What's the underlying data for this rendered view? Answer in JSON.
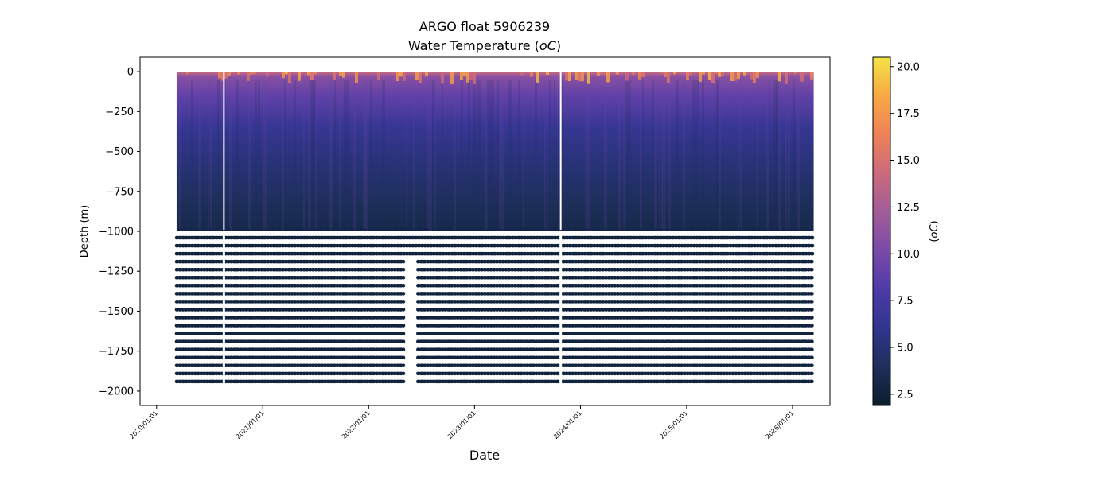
{
  "chart_data": {
    "type": "heatmap",
    "title": "ARGO float 5906239",
    "subtitle_main": "Water Temperature (",
    "subtitle_unit": "oC",
    "subtitle_close": ")",
    "xlabel": "Date",
    "ylabel": "Depth (m)",
    "colorbar_label_open": "(",
    "colorbar_label_unit": "oC",
    "colorbar_label_close": ")",
    "x_range": [
      "2019-11-05",
      "2026-05-10"
    ],
    "ylim": [
      -2090,
      90
    ],
    "x_ticks": [
      "2020/01/01",
      "2021/01/01",
      "2022/01/01",
      "2023/01/01",
      "2024/01/01",
      "2025/01/01",
      "2026/01/01"
    ],
    "y_ticks": [
      0,
      -250,
      -500,
      -750,
      -1000,
      -1250,
      -1500,
      -1750,
      -2000
    ],
    "y_tick_labels": [
      "0",
      "−250",
      "−500",
      "−750",
      "−1000",
      "−1250",
      "−1500",
      "−1750",
      "−2000"
    ],
    "colorbar_range": [
      1.9,
      20.5
    ],
    "colorbar_ticks": [
      2.5,
      5.0,
      7.5,
      10.0,
      12.5,
      15.0,
      17.5,
      20.0
    ],
    "colorbar_tick_labels": [
      "2.5",
      "5.0",
      "7.5",
      "10.0",
      "12.5",
      "15.0",
      "17.5",
      "20.0"
    ],
    "colormap": [
      "#0b1d2e",
      "#1d2f5a",
      "#30358d",
      "#4e3aa8",
      "#7a4aa8",
      "#a25c98",
      "#cb6a7c",
      "#ee8158",
      "#f8a844",
      "#f2e447"
    ],
    "series": [
      {
        "date_start": "2020-03-10",
        "date_end": "2026-03-15",
        "depth_top": 0,
        "depth_bottom": -1000,
        "temp_surface": 12.5,
        "temp_deep": 3.2
      },
      {
        "date_start": "2020-03-10",
        "date_end": "2026-03-15",
        "depth_top": -1000,
        "depth_bottom": -1975,
        "temp": 2.6,
        "sampling_interval_m": 50
      }
    ],
    "profile_gaps": [
      {
        "date": "2020-08-20",
        "depth_top": 0,
        "depth_bottom": -990
      },
      {
        "date": "2023-10-25",
        "depth_top": 0,
        "depth_bottom": -990
      }
    ],
    "deep_data_gaps": [
      {
        "date_start": "2022-05-01",
        "date_end": "2022-06-20",
        "depth_top": -1150,
        "depth_bottom": -1975
      }
    ]
  }
}
